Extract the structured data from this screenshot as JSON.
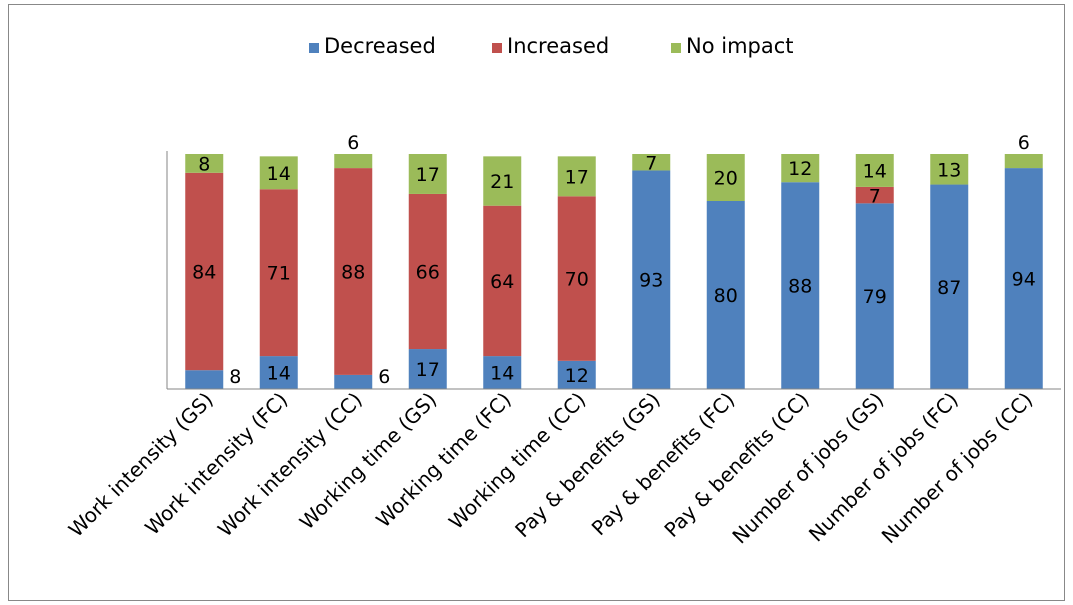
{
  "chart_data": {
    "type": "bar",
    "stacked": true,
    "orientation": "vertical",
    "categories": [
      "Work intensity (GS)",
      "Work intensity (FC)",
      "Work intensity (CC)",
      "Working time (GS)",
      "Working time (FC)",
      "Working time (CC)",
      "Pay & benefits (GS)",
      "Pay & benefits (FC)",
      "Pay & benefits (CC)",
      "Number of jobs (GS)",
      "Number of jobs (FC)",
      "Number of jobs (CC)"
    ],
    "series": [
      {
        "name": "Decreased",
        "color": "#4f81bd",
        "values": [
          8,
          14,
          6,
          17,
          14,
          12,
          93,
          80,
          88,
          79,
          87,
          94
        ]
      },
      {
        "name": "Increased",
        "color": "#c0504d",
        "values": [
          84,
          71,
          88,
          66,
          64,
          70,
          0,
          0,
          0,
          7,
          0,
          0
        ]
      },
      {
        "name": "No impact",
        "color": "#9bbb59",
        "values": [
          8,
          14,
          6,
          17,
          21,
          17,
          7,
          20,
          12,
          14,
          13,
          6
        ]
      }
    ],
    "data_labels": [
      [
        "8",
        "14",
        "6",
        "17",
        "14",
        "12",
        "93",
        "80",
        "88",
        "79",
        "87",
        "94"
      ],
      [
        "84",
        "71",
        "88",
        "66",
        "64",
        "70",
        "",
        "",
        "",
        "7",
        "",
        ""
      ],
      [
        "8",
        "14",
        "6",
        "17",
        "21",
        "17",
        "7",
        "20",
        "12",
        "14",
        "13",
        "6"
      ]
    ],
    "outside_labels": {
      "0-0": "right",
      "0-2": "right",
      "2-2": "above",
      "2-11": "above"
    },
    "legend_position": "top-center",
    "ylim": [
      0,
      100
    ],
    "grid": false,
    "axis_tick_labels_visible": false
  }
}
